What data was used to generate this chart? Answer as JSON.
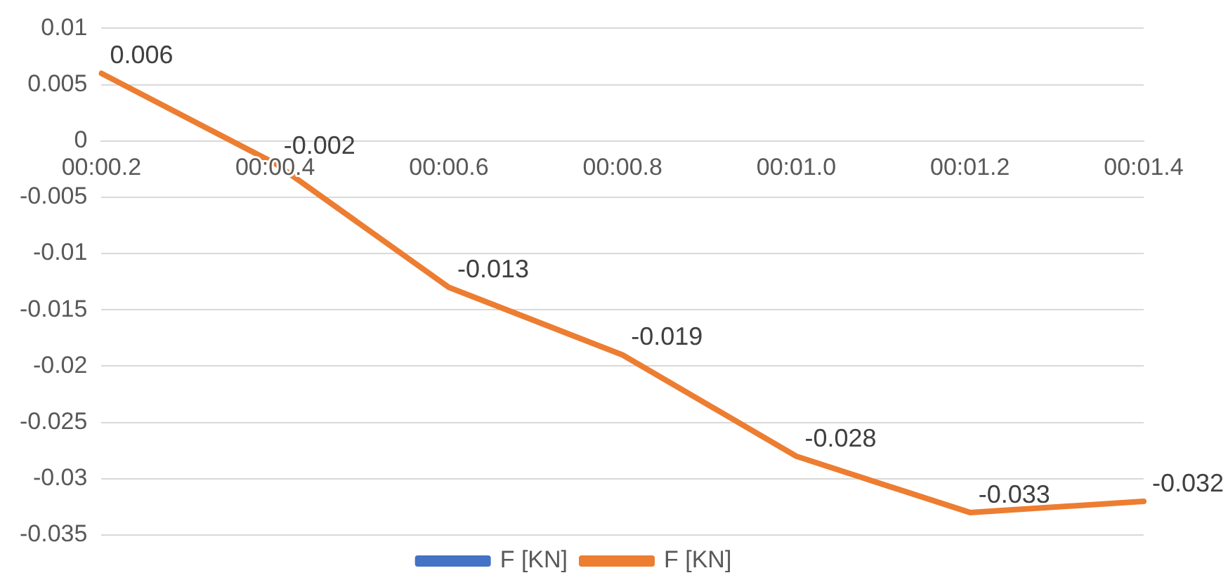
{
  "chart_data": {
    "type": "line",
    "categories": [
      "00:00.2",
      "00:00.4",
      "00:00.6",
      "00:00.8",
      "00:01.0",
      "00:01.2",
      "00:01.4"
    ],
    "series": [
      {
        "name": "F [KN]",
        "color": "#4472c4",
        "values": [
          null,
          null,
          null,
          null,
          null,
          null,
          null
        ]
      },
      {
        "name": "F [KN]",
        "color": "#ed7d31",
        "values": [
          0.006,
          -0.002,
          -0.013,
          -0.019,
          -0.028,
          -0.033,
          -0.032
        ]
      }
    ],
    "ylim": [
      -0.035,
      0.01
    ],
    "yticks": [
      -0.035,
      -0.03,
      -0.025,
      -0.02,
      -0.015,
      -0.01,
      -0.005,
      0,
      0.005,
      0.01
    ],
    "grid": "y",
    "legend": "bottom",
    "data_labels": true,
    "marker": "none",
    "line_style": "solid"
  }
}
